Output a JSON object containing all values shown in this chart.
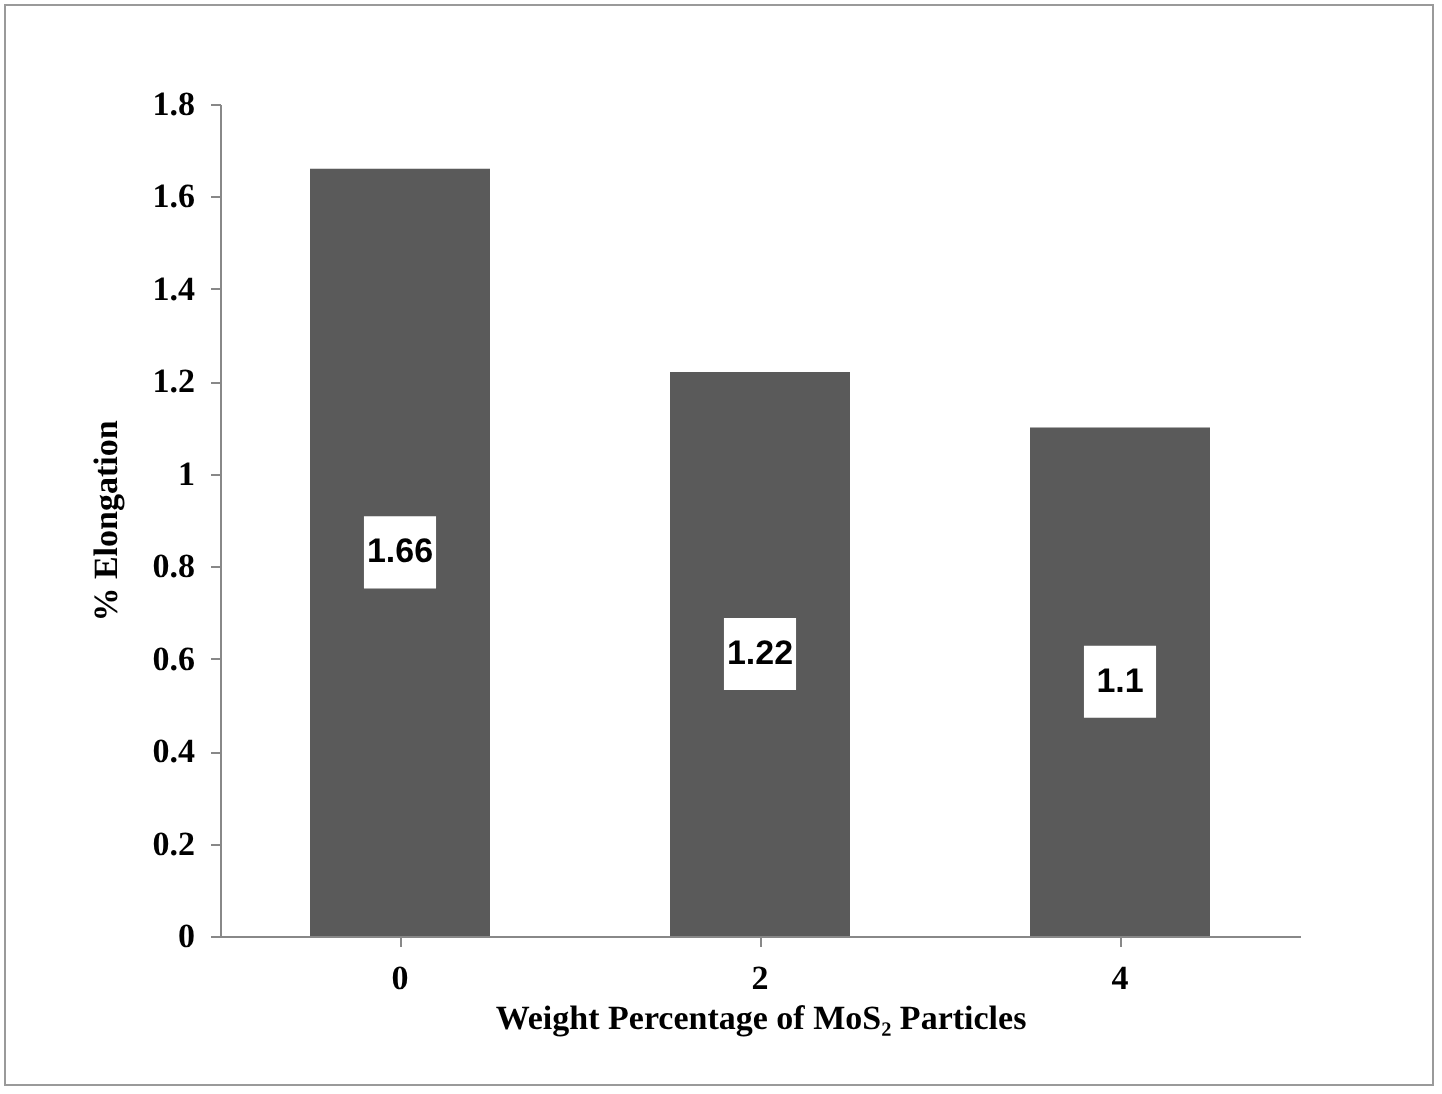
{
  "chart_data": {
    "type": "bar",
    "xlabel": "Weight Percentage of MoS₂ Particles",
    "ylabel": "% Elongation",
    "categories": [
      "0",
      "2",
      "4"
    ],
    "values": [
      1.66,
      1.22,
      1.1
    ],
    "color": "#5a5a5a",
    "ylim": [
      0,
      1.8
    ],
    "yticks": [
      0,
      0.2,
      0.4,
      0.6,
      0.8,
      1,
      1.2,
      1.4,
      1.6,
      1.8
    ],
    "data_labels": true
  }
}
